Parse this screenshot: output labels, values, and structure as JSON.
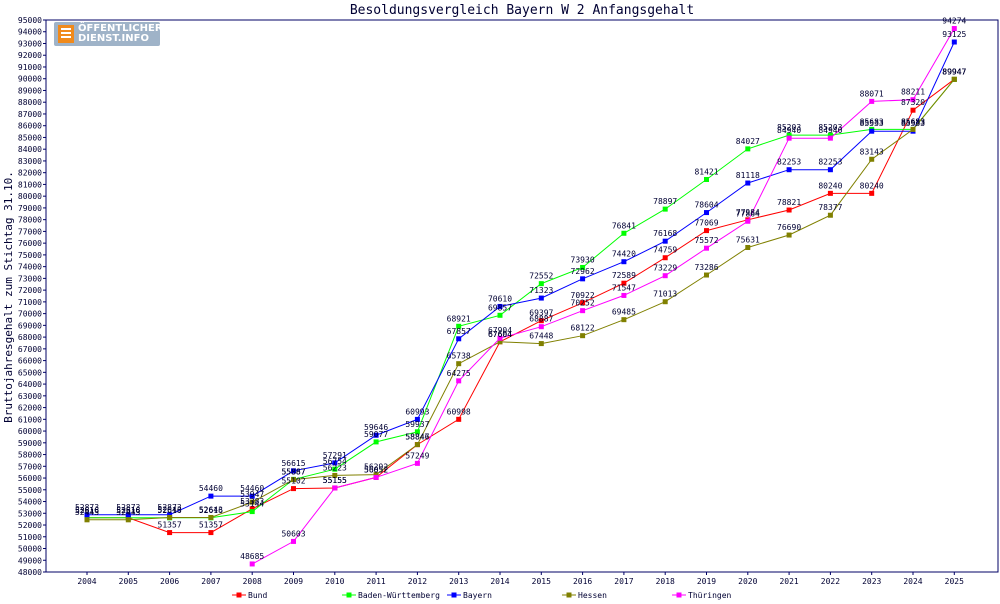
{
  "logo": {
    "line1": "ÖFFENTLICHER",
    "line2": "DIENST.INFO"
  },
  "chart_data": {
    "type": "line",
    "title": "Besoldungsvergleich Bayern W 2 Anfangsgehalt",
    "xlabel": "",
    "ylabel": "Bruttojahresgehalt zum Stichtag 31.10.",
    "ylim": [
      48000,
      95000
    ],
    "ytick_step": 1000,
    "grid": false,
    "legend_position": "bottom",
    "categories": [
      "2004",
      "2005",
      "2006",
      "2007",
      "2008",
      "2009",
      "2010",
      "2011",
      "2012",
      "2013",
      "2014",
      "2015",
      "2016",
      "2017",
      "2018",
      "2019",
      "2020",
      "2021",
      "2022",
      "2023",
      "2024",
      "2025"
    ],
    "series": [
      {
        "name": "Bund",
        "color": "#ff0000",
        "values": [
          52616,
          52616,
          51357,
          51357,
          53383,
          55102,
          55155,
          56052,
          58846,
          60998,
          67604,
          69397,
          70922,
          72589,
          74759,
          77069,
          77984,
          78821,
          80240,
          80240,
          87320,
          89947
        ],
        "labels": [
          "52616",
          "52616",
          "51357",
          "51357",
          "53383",
          "55102",
          "55155",
          "56052",
          "58846",
          "60998",
          "67604",
          "69397",
          "70922",
          "72589",
          "74759",
          "77069",
          "77984",
          "78821",
          "80240",
          "80240",
          "87320",
          "89947"
        ]
      },
      {
        "name": "Baden-Württemberg",
        "color": "#00ff00",
        "values": [
          52616,
          52616,
          52616,
          52616,
          53144,
          55887,
          56754,
          59077,
          59937,
          68921,
          69857,
          72552,
          73930,
          76841,
          78897,
          81421,
          84027,
          85203,
          85203,
          85683,
          85683,
          89947
        ],
        "labels": [
          "52616",
          "52616",
          "52616",
          "52616",
          "53144",
          "55887",
          "56754",
          "59077",
          "59937",
          "68921",
          "69857",
          "72552",
          "73930",
          "76841",
          "78897",
          "81421",
          "84027",
          "85203",
          "85203",
          "85683",
          "85683",
          "89947"
        ]
      },
      {
        "name": "Bayern",
        "color": "#0000ff",
        "values": [
          52873,
          52873,
          52873,
          54460,
          54460,
          56615,
          57291,
          59646,
          60993,
          67857,
          70610,
          71323,
          72962,
          74420,
          76168,
          78604,
          81118,
          82253,
          82253,
          85533,
          85533,
          93125
        ],
        "labels": [
          "52873",
          "52873",
          "52873",
          "54460",
          "54460",
          "56615",
          "57291",
          "59646",
          "60993",
          "67857",
          "70610",
          "71323",
          "72962",
          "74420",
          "76168",
          "78604",
          "81118",
          "82253",
          "82253",
          "85533",
          "85533",
          "93125"
        ]
      },
      {
        "name": "Hessen",
        "color": "#808000",
        "values": [
          52443,
          52443,
          52643,
          52643,
          53947,
          55867,
          56223,
          56292,
          58847,
          65738,
          67604,
          67448,
          68122,
          69485,
          71013,
          73286,
          75631,
          76690,
          78377,
          83143,
          85683,
          89947
        ],
        "labels": [
          "52443",
          "52443",
          "52643",
          "52643",
          "53947",
          "55867",
          "56223",
          "56292",
          "58847",
          "65738",
          "67604",
          "67448",
          "68122",
          "69485",
          "71013",
          "73286",
          "75631",
          "76690",
          "78377",
          "83143",
          "85683",
          "89947"
        ]
      },
      {
        "name": "Thüringen",
        "color": "#ff00ff",
        "values": [
          null,
          null,
          null,
          null,
          48685,
          50603,
          55155,
          56052,
          57249,
          64275,
          67904,
          68887,
          70252,
          71547,
          73229,
          75572,
          77864,
          84940,
          84940,
          88071,
          88211,
          94274
        ],
        "labels": [
          "",
          "",
          "",
          "",
          "48685",
          "50603",
          "55155",
          "56052",
          "57249",
          "64275",
          "67904",
          "68887",
          "70252",
          "71547",
          "73229",
          "75572",
          "77864",
          "84940",
          "84940",
          "88071",
          "88211",
          "94274"
        ]
      }
    ]
  }
}
